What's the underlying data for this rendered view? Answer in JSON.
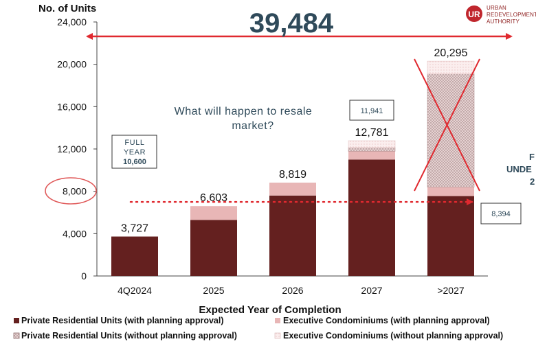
{
  "chart_data": {
    "type": "bar",
    "stacked": true,
    "ylabel": "No. of Units",
    "xlabel": "Expected Year of Completion",
    "ylim": [
      0,
      24000
    ],
    "yticks": [
      "0",
      "4,000",
      "8,000",
      "12,000",
      "16,000",
      "20,000",
      "24,000"
    ],
    "ytick_values": [
      0,
      4000,
      8000,
      12000,
      16000,
      20000,
      24000
    ],
    "grid": false,
    "legend_position": "bottom",
    "categories": [
      "4Q2024",
      "2025",
      "2026",
      "2027",
      ">2027"
    ],
    "series": [
      {
        "name": "Private Residential Units (with planning approval)",
        "color": "#64201f",
        "values": [
          3727,
          5300,
          7600,
          11000,
          7550
        ]
      },
      {
        "name": "Executive Condominiums (with planning approval)",
        "color": "#e8b6b6",
        "values": [
          0,
          1303,
          1219,
          781,
          844
        ]
      },
      {
        "name": "Private Residential Units (without planning approval)",
        "color": "#d9c3c3",
        "values": [
          0,
          0,
          0,
          350,
          10700
        ]
      },
      {
        "name": "Executive Condominiums (without planning approval)",
        "color": "#f8e6e6",
        "values": [
          0,
          0,
          0,
          650,
          1201
        ]
      }
    ],
    "totals": [
      3727,
      6603,
      8819,
      12781,
      20295
    ],
    "total_labels": [
      "3,727",
      "6,603",
      "8,819",
      "12,781",
      "20,295"
    ],
    "reference_line": {
      "value": 7000,
      "color": "#e0292f",
      "style": "dotted"
    }
  },
  "annotations": {
    "headline": "39,484",
    "question_line1": "What will happen to resale",
    "question_line2": "market?",
    "full_year_line1": "FULL",
    "full_year_line2": "YEAR",
    "full_year_line3": "10,600",
    "box_2027": "11,941",
    "box_right": "8,394",
    "cut_off_line1": "F",
    "cut_off_line2": "UNDE",
    "cut_off_line3": "2"
  },
  "logo": {
    "line1": "URBAN",
    "line2": "REDEVELOPMENT",
    "line3": "AUTHORITY"
  },
  "colors": {
    "headline": "#2f4a5a",
    "arrow": "#e0292f",
    "circle": "#e05a5a",
    "box_border": "#333333"
  }
}
